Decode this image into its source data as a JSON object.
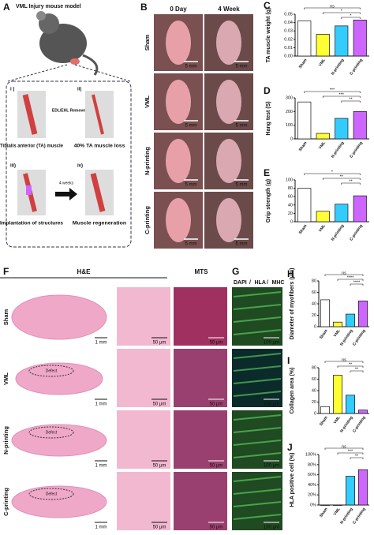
{
  "figure": {
    "panel_letters": [
      "A",
      "B",
      "C",
      "D",
      "E",
      "F",
      "G",
      "H",
      "I",
      "J"
    ],
    "a": {
      "title": "VML Injury mouse model",
      "steps": [
        "i )",
        "ii)",
        "iii)",
        "iv)"
      ],
      "remove": "EDL/EHL Remove",
      "captions": [
        "Tibialis anterior (TA) muscle",
        "40% TA muscle loss",
        "Implantation of structures",
        "Muscle regeneration"
      ],
      "arrow_label": "4 weeks"
    },
    "groups": [
      "Sham",
      "VML",
      "N-printing",
      "C-printing"
    ],
    "b": {
      "columns": [
        "0 Day",
        "4 Week"
      ],
      "scale": "5 mm"
    },
    "f": {
      "columns": [
        "H&E",
        "MTS"
      ],
      "scale_large": "1 mm",
      "scale_small": "50 μm",
      "defect": "Defect"
    },
    "g": {
      "stains": [
        "DAPI",
        "/",
        "HLA",
        "/",
        "MHC"
      ],
      "scale": "100 μm"
    }
  },
  "chart_data": [
    {
      "type": "bar",
      "y_label": "TA muscle weight (g)",
      "categories": [
        "Sham",
        "VML",
        "N-printing",
        "C-printing"
      ],
      "values": [
        0.042,
        0.026,
        0.036,
        0.043
      ],
      "colors": [
        "#ffffff",
        "#ffff33",
        "#33ccff",
        "#cc66ff"
      ],
      "ylim": [
        0,
        0.05
      ],
      "yticks": [
        {
          "value": 0,
          "label": "0.00"
        },
        {
          "value": 0.01,
          "label": "0.01"
        },
        {
          "value": 0.02,
          "label": "0.02"
        },
        {
          "value": 0.03,
          "label": "0.03"
        },
        {
          "value": 0.04,
          "label": "0.04"
        },
        {
          "value": 0.05,
          "label": "0.05"
        }
      ],
      "annotations": [
        "ns",
        "*",
        "*"
      ]
    },
    {
      "type": "bar",
      "y_label": "Hang test (S)",
      "categories": [
        "Sham",
        "VML",
        "N-printing",
        "C-printing"
      ],
      "values": [
        270,
        40,
        150,
        200
      ],
      "colors": [
        "#ffffff",
        "#ffff33",
        "#33ccff",
        "#cc66ff"
      ],
      "ylim": [
        0,
        300
      ],
      "yticks": [
        0,
        100,
        200,
        300
      ],
      "annotations": [
        "***",
        "***",
        "**"
      ]
    },
    {
      "type": "bar",
      "y_label": "Grip strength (g)",
      "categories": [
        "Sham",
        "VML",
        "N-printing",
        "C-printing"
      ],
      "values": [
        80,
        25,
        42,
        62
      ],
      "colors": [
        "#ffffff",
        "#ffff33",
        "#33ccff",
        "#cc66ff"
      ],
      "ylim": [
        0,
        100
      ],
      "yticks": [
        0,
        20,
        40,
        60,
        80,
        100
      ],
      "annotations": [
        "*",
        "**",
        "**"
      ]
    },
    {
      "type": "bar",
      "y_label": "Diameter of myofibers (μm)",
      "categories": [
        "Sham",
        "VML",
        "N-printing",
        "C-printing"
      ],
      "values": [
        47,
        8,
        22,
        45
      ],
      "colors": [
        "#ffffff",
        "#ffff33",
        "#33ccff",
        "#cc66ff"
      ],
      "ylim": [
        0,
        80
      ],
      "yticks": [
        0,
        20,
        40,
        60,
        80
      ],
      "annotations": [
        "ns",
        "****",
        "****"
      ]
    },
    {
      "type": "bar",
      "y_label": "Collagen area (%)",
      "categories": [
        "Sham",
        "VML",
        "N-printing",
        "C-printing"
      ],
      "values": [
        12,
        67,
        32,
        6
      ],
      "colors": [
        "#ffffff",
        "#ffff33",
        "#33ccff",
        "#cc66ff"
      ],
      "ylim": [
        0,
        80
      ],
      "yticks": [
        0,
        20,
        40,
        60,
        80
      ],
      "annotations": [
        "ns",
        "**",
        "**"
      ]
    },
    {
      "type": "bar",
      "y_label": "HLA positive cell (%)",
      "categories": [
        "Sham",
        "VML",
        "N-printing",
        "C-printing"
      ],
      "values": [
        0,
        0,
        57,
        70
      ],
      "colors": [
        "#ffffff",
        "#ffff33",
        "#33ccff",
        "#cc66ff"
      ],
      "ylim": [
        0,
        100
      ],
      "yticks": [
        {
          "value": 0,
          "label": "0%"
        },
        {
          "value": 20,
          "label": "20%"
        },
        {
          "value": 40,
          "label": "40%"
        },
        {
          "value": 60,
          "label": "60%"
        },
        {
          "value": 80,
          "label": "80%"
        },
        {
          "value": 100,
          "label": "100%"
        }
      ],
      "annotations": [
        "ns",
        "***",
        "**"
      ]
    }
  ]
}
